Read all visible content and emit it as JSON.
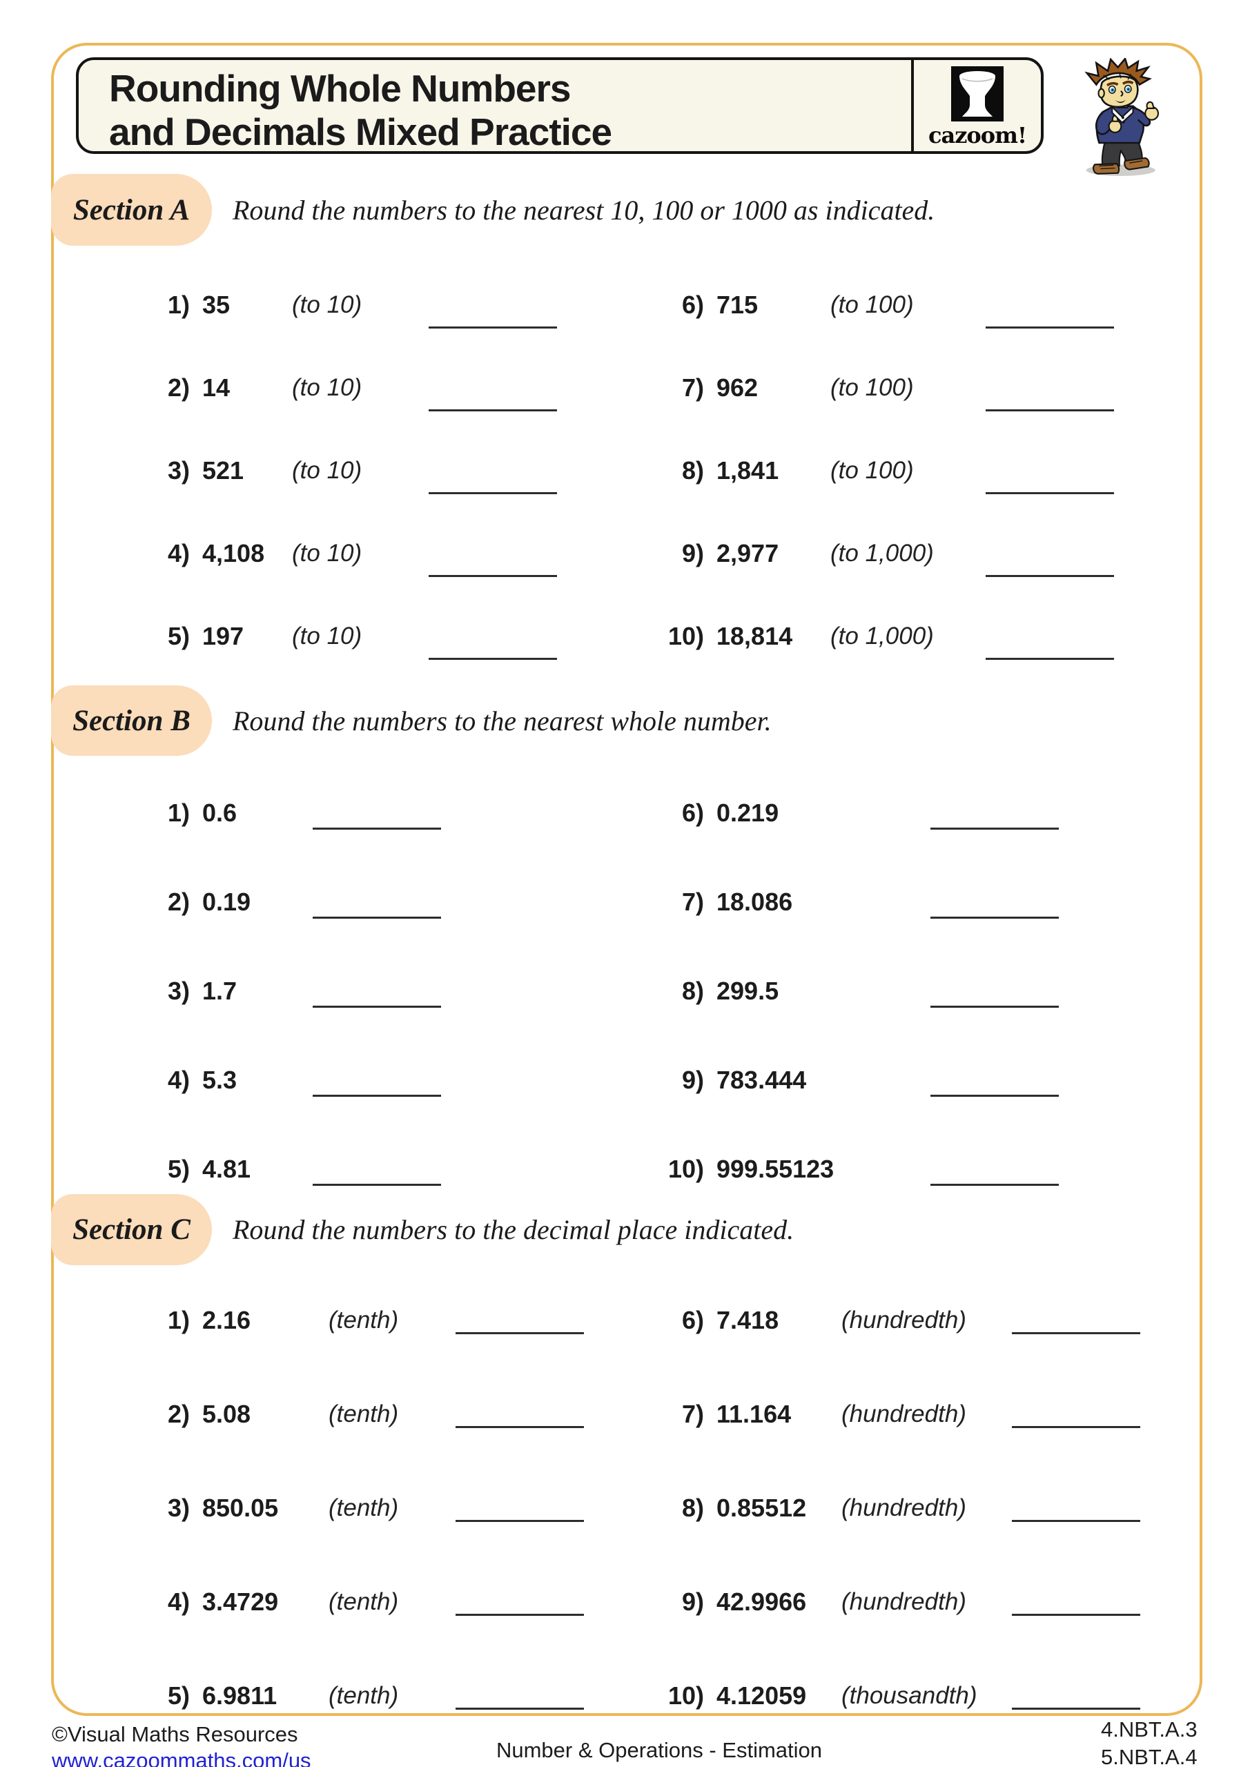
{
  "page": {
    "title_lines": [
      "Rounding Whole Numbers",
      "and Decimals Mixed Practice"
    ],
    "logo": {
      "brand": "cazoom!",
      "icon": "djembe-drum-icon"
    }
  },
  "sections": [
    {
      "label": "Section A",
      "instruction": "Round the numbers to the nearest 10, 100 or 1000 as indicated.",
      "items": [
        {
          "num": "1)",
          "value": "35",
          "qualifier": "(to 10)"
        },
        {
          "num": "2)",
          "value": "14",
          "qualifier": "(to 10)"
        },
        {
          "num": "3)",
          "value": "521",
          "qualifier": "(to 10)"
        },
        {
          "num": "4)",
          "value": "4,108",
          "qualifier": "(to 10)"
        },
        {
          "num": "5)",
          "value": "197",
          "qualifier": "(to 10)"
        },
        {
          "num": "6)",
          "value": "715",
          "qualifier": "(to 100)"
        },
        {
          "num": "7)",
          "value": "962",
          "qualifier": "(to 100)"
        },
        {
          "num": "8)",
          "value": "1,841",
          "qualifier": "(to 100)"
        },
        {
          "num": "9)",
          "value": "2,977",
          "qualifier": "(to 1,000)"
        },
        {
          "num": "10)",
          "value": "18,814",
          "qualifier": "(to 1,000)"
        }
      ]
    },
    {
      "label": "Section B",
      "instruction": "Round the numbers to the nearest whole number.",
      "items": [
        {
          "num": "1)",
          "value": "0.6",
          "qualifier": ""
        },
        {
          "num": "2)",
          "value": "0.19",
          "qualifier": ""
        },
        {
          "num": "3)",
          "value": "1.7",
          "qualifier": ""
        },
        {
          "num": "4)",
          "value": "5.3",
          "qualifier": ""
        },
        {
          "num": "5)",
          "value": "4.81",
          "qualifier": ""
        },
        {
          "num": "6)",
          "value": "0.219",
          "qualifier": ""
        },
        {
          "num": "7)",
          "value": "18.086",
          "qualifier": ""
        },
        {
          "num": "8)",
          "value": "299.5",
          "qualifier": ""
        },
        {
          "num": "9)",
          "value": "783.444",
          "qualifier": ""
        },
        {
          "num": "10)",
          "value": "999.55123",
          "qualifier": ""
        }
      ]
    },
    {
      "label": "Section C",
      "instruction": "Round the numbers to the decimal place indicated.",
      "items": [
        {
          "num": "1)",
          "value": "2.16",
          "qualifier": "(tenth)"
        },
        {
          "num": "2)",
          "value": "5.08",
          "qualifier": "(tenth)"
        },
        {
          "num": "3)",
          "value": "850.05",
          "qualifier": "(tenth)"
        },
        {
          "num": "4)",
          "value": "3.4729",
          "qualifier": "(tenth)"
        },
        {
          "num": "5)",
          "value": "6.9811",
          "qualifier": "(tenth)"
        },
        {
          "num": "6)",
          "value": "7.418",
          "qualifier": "(hundredth)"
        },
        {
          "num": "7)",
          "value": "11.164",
          "qualifier": "(hundredth)"
        },
        {
          "num": "8)",
          "value": "0.85512",
          "qualifier": "(hundredth)"
        },
        {
          "num": "9)",
          "value": "42.9966",
          "qualifier": "(hundredth)"
        },
        {
          "num": "10)",
          "value": "4.12059",
          "qualifier": "(thousandth)"
        }
      ]
    }
  ],
  "footer": {
    "copyright": "©Visual Maths Resources",
    "website": "www.cazoommaths.com/us",
    "category": "Number & Operations - Estimation",
    "standards": [
      "4.NBT.A.3",
      "5.NBT.A.4"
    ]
  },
  "colors": {
    "page_border_gold": "#ECB757",
    "section_label_peach": "#FBDCBB",
    "title_box_cream": "#F8F5E9",
    "link_blue": "#2121D3",
    "ink": "#1C1C1C"
  }
}
